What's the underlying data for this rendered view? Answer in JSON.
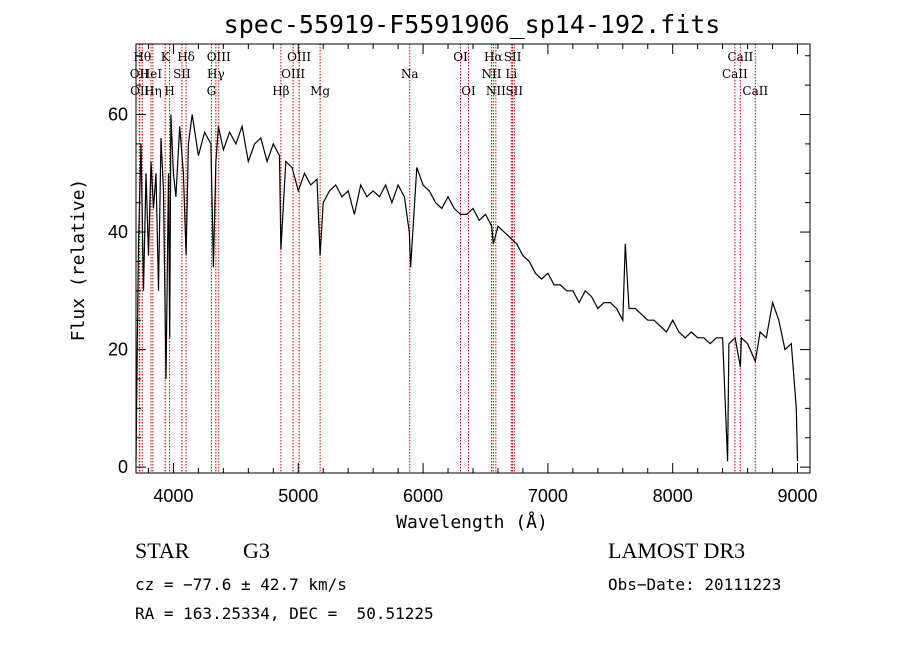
{
  "chart_data": {
    "type": "line",
    "title": "spec-55919-F5591906_sp14-192.fits",
    "xlabel": "Wavelength (Å)",
    "ylabel": "Flux (relative)",
    "xlim": [
      3700,
      9100
    ],
    "ylim": [
      -1,
      72
    ],
    "x_ticks": [
      4000,
      5000,
      6000,
      7000,
      8000,
      9000
    ],
    "y_ticks": [
      0,
      20,
      40,
      60
    ],
    "series": [
      {
        "name": "spectrum",
        "x": [
          3700,
          3720,
          3740,
          3760,
          3780,
          3800,
          3820,
          3840,
          3860,
          3880,
          3900,
          3920,
          3940,
          3960,
          3970,
          3980,
          4000,
          4020,
          4050,
          4080,
          4101,
          4120,
          4150,
          4200,
          4250,
          4300,
          4320,
          4340,
          4360,
          4400,
          4450,
          4500,
          4550,
          4600,
          4650,
          4700,
          4750,
          4800,
          4850,
          4861,
          4900,
          4950,
          5000,
          5050,
          5100,
          5150,
          5175,
          5200,
          5250,
          5300,
          5350,
          5400,
          5450,
          5500,
          5550,
          5600,
          5650,
          5700,
          5750,
          5800,
          5850,
          5890,
          5900,
          5950,
          6000,
          6050,
          6100,
          6150,
          6200,
          6250,
          6300,
          6350,
          6400,
          6450,
          6500,
          6550,
          6563,
          6600,
          6650,
          6700,
          6750,
          6800,
          6850,
          6900,
          6950,
          7000,
          7050,
          7100,
          7150,
          7200,
          7250,
          7300,
          7350,
          7400,
          7450,
          7500,
          7550,
          7600,
          7620,
          7650,
          7700,
          7750,
          7800,
          7850,
          7900,
          7950,
          8000,
          8050,
          8100,
          8150,
          8200,
          8250,
          8300,
          8350,
          8400,
          8440,
          8450,
          8500,
          8542,
          8550,
          8600,
          8662,
          8700,
          8750,
          8800,
          8850,
          8900,
          8950,
          8990,
          9000
        ],
        "y": [
          1,
          38,
          55,
          30,
          50,
          36,
          52,
          44,
          50,
          30,
          56,
          47,
          15,
          50,
          22,
          60,
          50,
          46,
          58,
          50,
          36,
          55,
          60,
          53,
          57,
          55,
          34,
          52,
          58,
          54,
          57,
          55,
          58,
          52,
          55,
          56,
          52,
          55,
          53,
          37,
          52,
          51,
          47,
          50,
          48,
          49,
          36,
          45,
          47,
          48,
          46,
          47,
          43,
          48,
          46,
          47,
          46,
          48,
          45,
          48,
          46,
          40,
          34,
          51,
          48,
          47,
          45,
          44,
          46,
          44,
          43,
          43,
          44,
          42,
          43,
          41,
          38,
          41,
          40,
          39,
          38,
          36,
          35,
          33,
          32,
          33,
          31,
          31,
          30,
          30,
          28,
          30,
          29,
          27,
          28,
          28,
          27,
          25,
          38,
          27,
          27,
          26,
          25,
          25,
          24,
          23,
          25,
          23,
          22,
          23,
          22,
          22,
          21,
          22,
          22,
          1,
          21,
          22,
          17,
          22,
          21,
          18,
          23,
          22,
          28,
          25,
          20,
          21,
          10,
          1
        ]
      }
    ],
    "spectral_lines": [
      {
        "label": "OII",
        "wavelength": 3727,
        "row": 2
      },
      {
        "label": "OII",
        "wavelength": 3730,
        "row": 3
      },
      {
        "label": "Hθ",
        "wavelength": 3750,
        "row": 1
      },
      {
        "label": "HeI",
        "wavelength": 3820,
        "row": 2
      },
      {
        "label": "Hη",
        "wavelength": 3835,
        "row": 3
      },
      {
        "label": "K",
        "wavelength": 3934,
        "row": 1
      },
      {
        "label": "SII",
        "wavelength": 4068,
        "row": 2
      },
      {
        "label": "H",
        "wavelength": 3969,
        "row": 3
      },
      {
        "label": "Hδ",
        "wavelength": 4101,
        "row": 1
      },
      {
        "label": "OIII",
        "wavelength": 4363,
        "row": 1
      },
      {
        "label": "Hγ",
        "wavelength": 4340,
        "row": 2
      },
      {
        "label": "G",
        "wavelength": 4304,
        "row": 3
      },
      {
        "label": "Hβ",
        "wavelength": 4861,
        "row": 3
      },
      {
        "label": "OIII",
        "wavelength": 5007,
        "row": 1
      },
      {
        "label": "OIII",
        "wavelength": 4959,
        "row": 2
      },
      {
        "label": "Mg",
        "wavelength": 5175,
        "row": 3
      },
      {
        "label": "Na",
        "wavelength": 5893,
        "row": 2
      },
      {
        "label": "OI",
        "wavelength": 6300,
        "row": 1
      },
      {
        "label": "OI",
        "wavelength": 6364,
        "row": 3
      },
      {
        "label": "Hα",
        "wavelength": 6563,
        "row": 1
      },
      {
        "label": "NII",
        "wavelength": 6548,
        "row": 2
      },
      {
        "label": "NII",
        "wavelength": 6583,
        "row": 3
      },
      {
        "label": "SII",
        "wavelength": 6717,
        "row": 1
      },
      {
        "label": "Li",
        "wavelength": 6707,
        "row": 2
      },
      {
        "label": "SII",
        "wavelength": 6731,
        "row": 3
      },
      {
        "label": "CaII",
        "wavelength": 8542,
        "row": 1
      },
      {
        "label": "CaII",
        "wavelength": 8498,
        "row": 2
      },
      {
        "label": "CaII",
        "wavelength": 8662,
        "row": 3
      }
    ]
  },
  "info": {
    "class": "STAR",
    "subclass": "G3",
    "cz": "cz = −77.6 ± 42.7 km/s",
    "coords": "RA = 163.25334, DEC =  50.51225",
    "survey": "LAMOST DR3",
    "obs_date": "Obs−Date: 20111223"
  },
  "colors": {
    "line_marker": "#cc0000",
    "spectrum": "#000000",
    "axes": "#000000"
  }
}
